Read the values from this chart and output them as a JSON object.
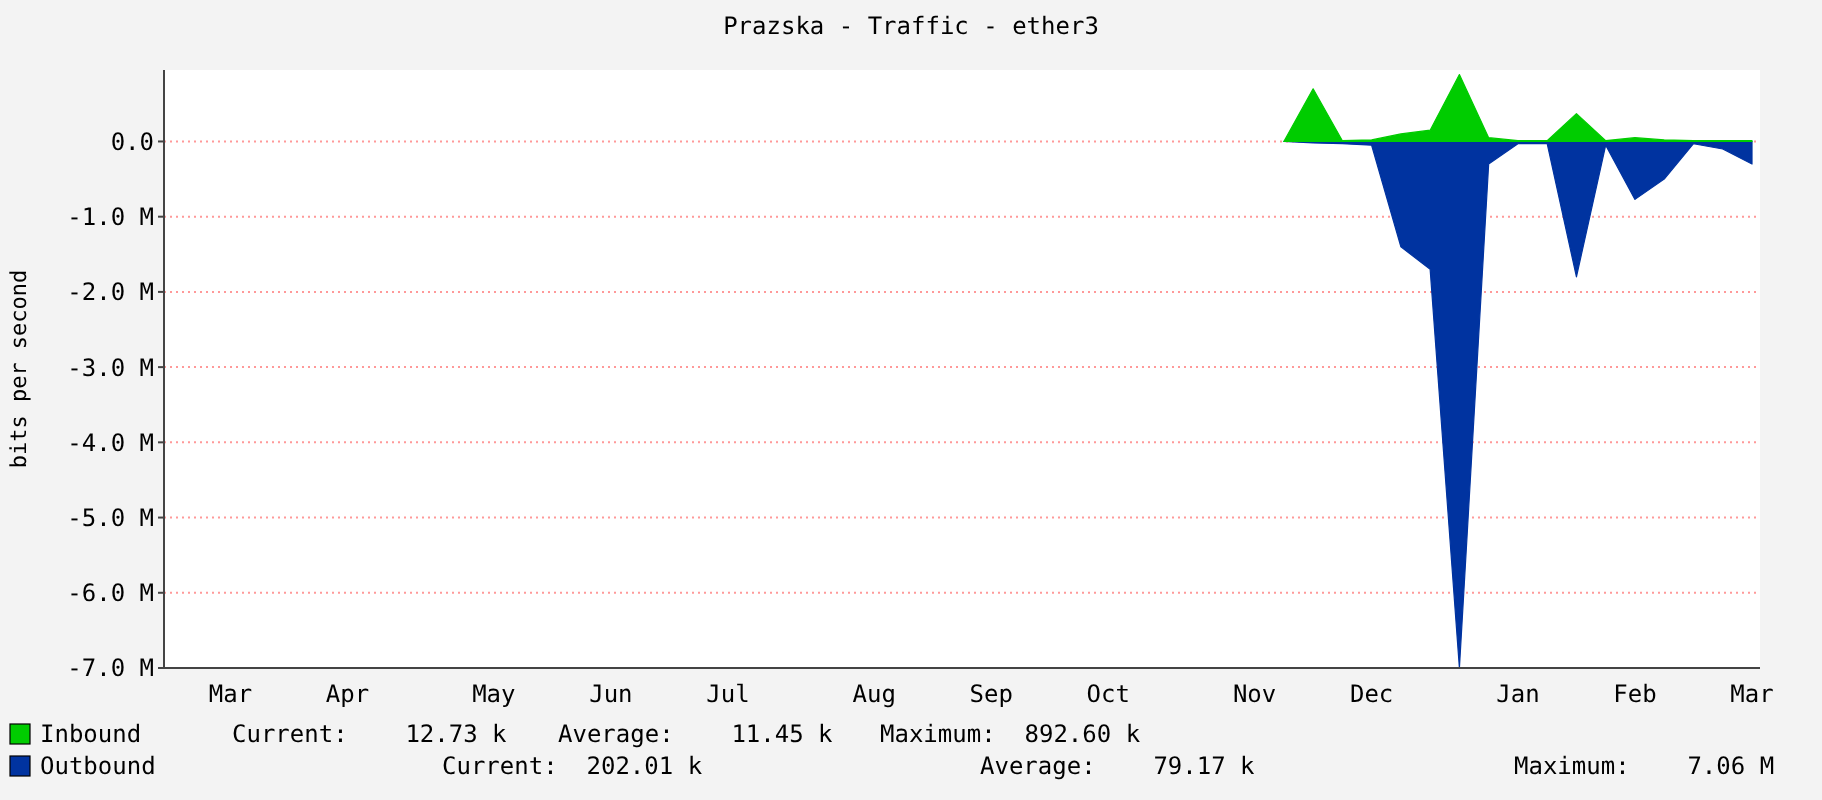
{
  "chart_data": {
    "type": "area",
    "title": "Prazska - Traffic - ether3",
    "ylabel": "bits per second",
    "categories": [
      null,
      null,
      "Mar",
      null,
      null,
      null,
      "Apr",
      null,
      null,
      null,
      null,
      "May",
      null,
      null,
      null,
      "Jun",
      null,
      null,
      null,
      "Jul",
      null,
      null,
      null,
      null,
      "Aug",
      null,
      null,
      null,
      "Sep",
      null,
      null,
      null,
      "Oct",
      null,
      null,
      null,
      null,
      "Nov",
      null,
      null,
      null,
      "Dec",
      null,
      null,
      null,
      null,
      "Jan",
      null,
      null,
      null,
      "Feb",
      null,
      null,
      null,
      "Mar"
    ],
    "ylim": [
      -7,
      0.95
    ],
    "yticks": [
      {
        "value": 0,
        "label": "0.0"
      },
      {
        "value": -1,
        "label": "-1.0 M"
      },
      {
        "value": -2,
        "label": "-2.0 M"
      },
      {
        "value": -3,
        "label": "-3.0 M"
      },
      {
        "value": -4,
        "label": "-4.0 M"
      },
      {
        "value": -5,
        "label": "-5.0 M"
      },
      {
        "value": -6,
        "label": "-6.0 M"
      },
      {
        "value": -7,
        "label": "-7.0 M"
      }
    ],
    "grid": "y",
    "legend": "bottom",
    "series": [
      {
        "name": "Outbound",
        "color": "#0033a0",
        "values": [
          null,
          null,
          null,
          null,
          null,
          null,
          null,
          null,
          null,
          null,
          null,
          null,
          null,
          null,
          null,
          null,
          null,
          null,
          null,
          null,
          null,
          null,
          null,
          null,
          null,
          null,
          null,
          null,
          null,
          null,
          null,
          null,
          null,
          null,
          null,
          null,
          null,
          null,
          0,
          -0.02,
          -0.03,
          -0.05,
          -1.4,
          -1.7,
          -7.0,
          -0.3,
          -0.03,
          -0.03,
          -1.8,
          -0.05,
          -0.77,
          -0.5,
          -0.03,
          -0.1,
          -0.3
        ]
      },
      {
        "name": "Inbound",
        "color": "#00cc00",
        "values": [
          null,
          null,
          null,
          null,
          null,
          null,
          null,
          null,
          null,
          null,
          null,
          null,
          null,
          null,
          null,
          null,
          null,
          null,
          null,
          null,
          null,
          null,
          null,
          null,
          null,
          null,
          null,
          null,
          null,
          null,
          null,
          null,
          null,
          null,
          null,
          null,
          null,
          null,
          0,
          0.7,
          0.01,
          0.02,
          0.1,
          0.15,
          0.89,
          0.05,
          0.01,
          0.01,
          0.37,
          0.01,
          0.05,
          0.02,
          0.01,
          0.01,
          0.01
        ]
      }
    ],
    "annotations": [
      "Current:    12.73 k",
      "Average:    11.45 k",
      "Maximum:  892.60 k",
      "Current:  202.01 k",
      "Average:    79.17 k",
      "Maximum:    7.06 M"
    ]
  }
}
